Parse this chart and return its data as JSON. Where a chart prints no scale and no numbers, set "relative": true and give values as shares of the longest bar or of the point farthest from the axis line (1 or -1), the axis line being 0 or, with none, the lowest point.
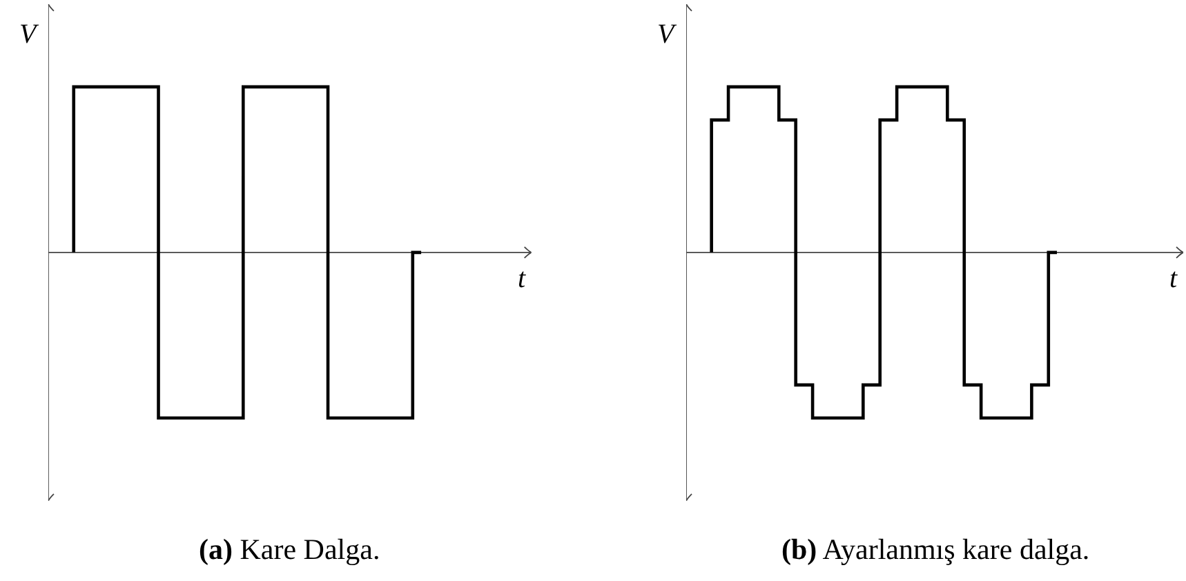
{
  "chart_data": [
    {
      "type": "step",
      "title": "(a) Kare Dalga.",
      "xlabel": "t",
      "ylabel": "V",
      "relative": true,
      "categories": [
        null,
        null,
        null,
        null,
        null,
        null,
        null,
        null,
        null,
        null,
        null,
        null,
        null,
        null,
        null,
        null,
        null,
        null,
        null,
        null,
        null,
        null,
        null,
        null,
        null,
        null,
        null,
        null,
        null,
        null,
        null,
        null,
        null,
        null,
        null,
        null,
        null,
        null,
        null,
        null,
        null,
        null,
        null,
        null,
        null,
        null,
        null,
        null,
        null,
        null,
        null,
        null,
        null,
        null,
        null,
        null,
        null,
        null
      ],
      "series": [
        {
          "color": "#000000",
          "values": [
            null,
            null,
            null,
            0,
            1,
            1,
            1,
            1,
            1,
            1,
            1,
            1,
            1,
            1,
            -1,
            -1,
            -1,
            -1,
            -1,
            -1,
            -1,
            -1,
            -1,
            -1,
            1,
            1,
            1,
            1,
            1,
            1,
            1,
            1,
            1,
            1,
            -1,
            -1,
            -1,
            -1,
            -1,
            -1,
            -1,
            -1,
            -1,
            -1,
            0,
            null,
            null,
            null,
            null,
            null,
            null,
            null,
            null,
            null,
            null,
            null,
            null,
            null
          ]
        }
      ]
    },
    {
      "type": "step",
      "title": "(b) Ayarlanmış kare dalga.",
      "xlabel": "t",
      "ylabel": "V",
      "relative": true,
      "categories": [
        null,
        null,
        null,
        null,
        null,
        null,
        null,
        null,
        null,
        null,
        null,
        null,
        null,
        null,
        null,
        null,
        null,
        null,
        null,
        null,
        null,
        null,
        null,
        null,
        null,
        null,
        null,
        null,
        null,
        null,
        null,
        null,
        null,
        null,
        null,
        null,
        null,
        null,
        null,
        null,
        null,
        null,
        null,
        null,
        null,
        null,
        null,
        null,
        null,
        null,
        null,
        null,
        null,
        null,
        null,
        null,
        null,
        null,
        null,
        null
      ],
      "series": [
        {
          "color": "#000000",
          "values": [
            null,
            null,
            null,
            0,
            0.8,
            0.8,
            1,
            1,
            1,
            1,
            1,
            1,
            0.8,
            0.8,
            -0.8,
            -0.8,
            -1,
            -1,
            -1,
            -1,
            -1,
            -1,
            -0.8,
            -0.8,
            0.8,
            0.8,
            1,
            1,
            1,
            1,
            1,
            1,
            0.8,
            0.8,
            -0.8,
            -0.8,
            -1,
            -1,
            -1,
            -1,
            -1,
            -1,
            -0.8,
            -0.8,
            0,
            null,
            null,
            null,
            null,
            null,
            null,
            null,
            null,
            null,
            null,
            null,
            null,
            null,
            null,
            null
          ]
        }
      ]
    }
  ]
}
